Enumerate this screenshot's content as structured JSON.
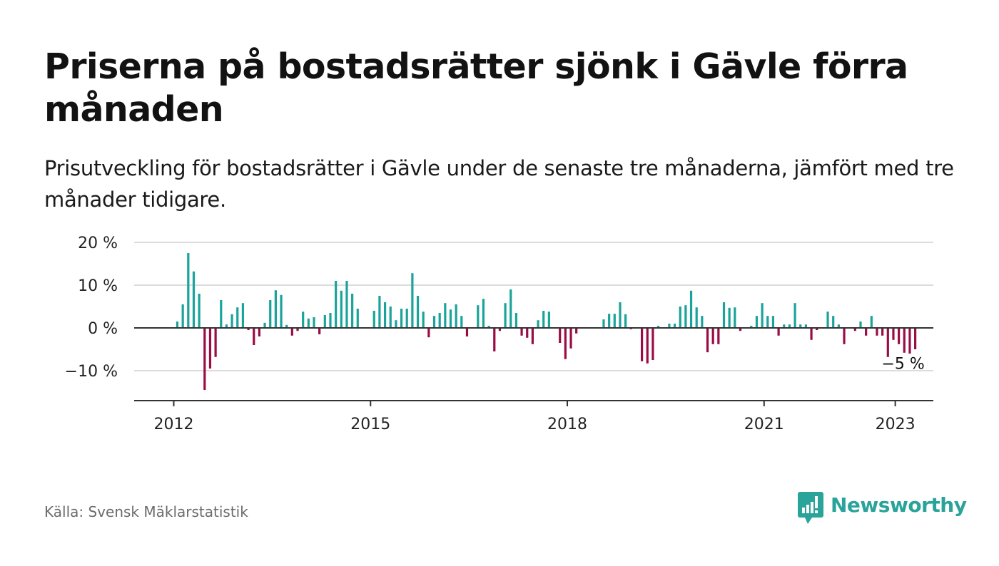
{
  "title": "Priserna på bostadsrätter sjönk i Gävle förra månaden",
  "subtitle": "Prisutveckling för bostadsrätter i Gävle under de senaste tre månaderna, jämfört med tre månader tidigare.",
  "source": "Källa: Svensk Mäklarstatistik",
  "brand": {
    "name": "Newsworthy",
    "icon": "newsworthy-logo-icon",
    "color": "#2aa39a"
  },
  "colors": {
    "positive": "#1aa39a",
    "negative": "#9b0c45",
    "grid": "#dcdcdc",
    "zero_line": "#333333",
    "axis": "#333333"
  },
  "chart_data": {
    "type": "bar",
    "x_start": "2012-01",
    "frequency": "monthly",
    "x_ticks": [
      "2012",
      "2015",
      "2018",
      "2021",
      "2023"
    ],
    "y_ticks": [
      "20 %",
      "10 %",
      "0 %",
      "−10 %"
    ],
    "y_tick_values": [
      20,
      10,
      0,
      -10
    ],
    "ylim": [
      -17,
      20.5
    ],
    "ylabel": "",
    "xlabel": "",
    "annotation": {
      "label": "−5 %",
      "month": "2023-01"
    },
    "values": [
      1.5,
      5.5,
      17.5,
      13.2,
      8.0,
      -14.5,
      -9.5,
      -6.8,
      6.5,
      0.8,
      3.2,
      4.8,
      5.8,
      -0.5,
      -4.0,
      -2.0,
      1.2,
      6.5,
      8.8,
      7.7,
      0.7,
      -1.8,
      -0.7,
      3.8,
      2.2,
      2.5,
      -1.5,
      3.0,
      3.5,
      11.0,
      8.7,
      11.0,
      8.0,
      4.5,
      0,
      0,
      4.0,
      7.5,
      6.0,
      5.0,
      1.8,
      4.5,
      4.5,
      12.8,
      7.5,
      3.8,
      -2.2,
      2.8,
      3.5,
      5.8,
      4.3,
      5.5,
      2.8,
      -2.0,
      0,
      5.3,
      6.8,
      0.5,
      -5.5,
      -0.7,
      5.8,
      9.0,
      3.5,
      -1.8,
      -2.3,
      -3.8,
      1.8,
      4.0,
      3.8,
      0,
      -3.5,
      -7.3,
      -4.8,
      -1.3,
      0,
      0,
      0,
      0,
      2.0,
      3.3,
      3.3,
      6.0,
      3.2,
      -0.3,
      0,
      -7.8,
      -8.3,
      -7.5,
      0.5,
      0,
      1.0,
      1.0,
      5.0,
      5.3,
      8.7,
      4.8,
      2.8,
      -5.7,
      -3.8,
      -3.8,
      6.0,
      4.7,
      4.8,
      -0.7,
      0,
      0.5,
      2.8,
      5.8,
      2.8,
      2.8,
      -1.8,
      0.8,
      0.8,
      5.8,
      0.8,
      0.8,
      -2.8,
      -0.5,
      0,
      3.8,
      2.8,
      0.8,
      -3.8,
      0,
      -0.7,
      1.5,
      -1.8,
      2.8,
      -1.8,
      -1.8,
      -6.8,
      -2.8,
      -3.8,
      -5.8,
      -6.0,
      -5.0
    ]
  }
}
